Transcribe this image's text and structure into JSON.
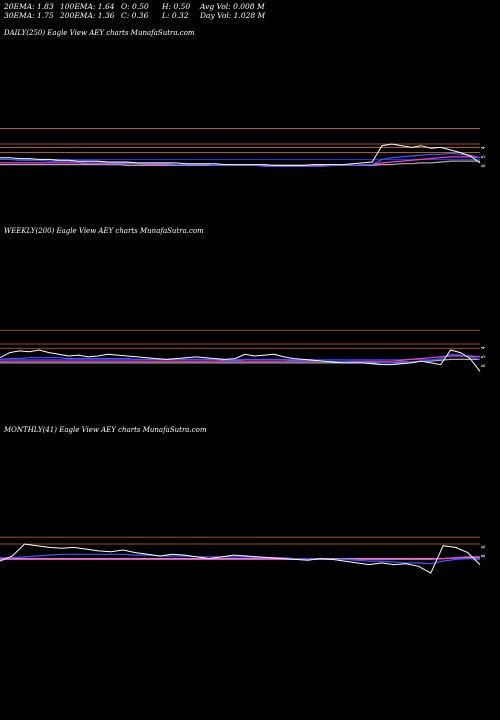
{
  "header": {
    "ema20": "20EMA: 1.83",
    "ema30": "30EMA: 1.75",
    "ema100": "100EMA: 1.64",
    "ema200": "200EMA: 1.36",
    "open": "O: 0.50",
    "close": "C: 0.36",
    "high": "H: 0.50",
    "low": "L: 0.32",
    "avg_vol": "Avg Vol: 0.008  M",
    "day_vol": "Day Vol: 1.028  M"
  },
  "colors": {
    "background": "#000000",
    "price": "#ffffff",
    "ema_short": "#3b5bff",
    "ema_mid": "#ff3bd6",
    "ema_long": "#aaaaaa",
    "levels": "#cc6a1a",
    "blue_line": "#1f3fff"
  },
  "chart_data": [
    {
      "type": "line",
      "title": "DAILY(250) Eagle  View  AEY charts MunafaSutra.com",
      "tick_labels": [
        "4",
        "5",
        "6"
      ],
      "series": [
        {
          "values": [
            0.46,
            0.46,
            0.45,
            0.45,
            0.44,
            0.44,
            0.43,
            0.43,
            0.42,
            0.42,
            0.42,
            0.41,
            0.41,
            0.41,
            0.4,
            0.4,
            0.4,
            0.4,
            0.4,
            0.39,
            0.39,
            0.39,
            0.39,
            0.38,
            0.38,
            0.38,
            0.38,
            0.38,
            0.37,
            0.37,
            0.37,
            0.37,
            0.38,
            0.38,
            0.38,
            0.38,
            0.39,
            0.4,
            0.41,
            0.6,
            0.62,
            0.6,
            0.58,
            0.6,
            0.57,
            0.58,
            0.55,
            0.52,
            0.48,
            0.4
          ]
        },
        {
          "values": [
            0.44,
            0.44,
            0.43,
            0.43,
            0.43,
            0.42,
            0.42,
            0.42,
            0.41,
            0.41,
            0.41,
            0.4,
            0.4,
            0.4,
            0.39,
            0.39,
            0.39,
            0.39,
            0.38,
            0.38,
            0.38,
            0.38,
            0.37,
            0.37,
            0.37,
            0.37,
            0.37,
            0.36,
            0.36,
            0.36,
            0.36,
            0.36,
            0.36,
            0.36,
            0.37,
            0.37,
            0.37,
            0.38,
            0.38,
            0.44,
            0.46,
            0.47,
            0.48,
            0.49,
            0.5,
            0.5,
            0.51,
            0.5,
            0.49,
            0.46
          ]
        },
        {
          "values": [
            0.4,
            0.4,
            0.4,
            0.4,
            0.4,
            0.4,
            0.4,
            0.4,
            0.4,
            0.39,
            0.39,
            0.39,
            0.39,
            0.39,
            0.39,
            0.38,
            0.38,
            0.38,
            0.38,
            0.38,
            0.38,
            0.38,
            0.37,
            0.37,
            0.37,
            0.37,
            0.37,
            0.37,
            0.37,
            0.37,
            0.37,
            0.37,
            0.37,
            0.37,
            0.37,
            0.37,
            0.37,
            0.37,
            0.38,
            0.4,
            0.41,
            0.42,
            0.43,
            0.44,
            0.45,
            0.46,
            0.47,
            0.47,
            0.47,
            0.46
          ]
        },
        {
          "values": [
            0.38,
            0.38,
            0.38,
            0.38,
            0.38,
            0.38,
            0.38,
            0.38,
            0.38,
            0.38,
            0.38,
            0.38,
            0.38,
            0.37,
            0.37,
            0.37,
            0.37,
            0.37,
            0.37,
            0.37,
            0.37,
            0.37,
            0.37,
            0.37,
            0.37,
            0.37,
            0.37,
            0.37,
            0.37,
            0.37,
            0.37,
            0.37,
            0.37,
            0.37,
            0.37,
            0.37,
            0.37,
            0.37,
            0.37,
            0.38,
            0.38,
            0.39,
            0.39,
            0.4,
            0.4,
            0.41,
            0.42,
            0.42,
            0.42,
            0.42
          ]
        }
      ],
      "levels": [
        0.8,
        0.62,
        0.58,
        0.52
      ],
      "blue_level": 0.44
    },
    {
      "type": "line",
      "title": "WEEKLY(200) Eagle  View  AEY charts MunafaSutra.com",
      "tick_labels": [
        "4",
        "5",
        "6"
      ],
      "series": [
        {
          "values": [
            0.46,
            0.52,
            0.54,
            0.53,
            0.55,
            0.52,
            0.5,
            0.48,
            0.49,
            0.47,
            0.48,
            0.5,
            0.49,
            0.48,
            0.47,
            0.46,
            0.45,
            0.44,
            0.45,
            0.46,
            0.47,
            0.46,
            0.45,
            0.44,
            0.45,
            0.5,
            0.48,
            0.49,
            0.5,
            0.47,
            0.45,
            0.44,
            0.43,
            0.42,
            0.41,
            0.4,
            0.4,
            0.4,
            0.39,
            0.38,
            0.38,
            0.39,
            0.4,
            0.42,
            0.4,
            0.38,
            0.55,
            0.52,
            0.45,
            0.3
          ]
        },
        {
          "values": [
            0.44,
            0.45,
            0.45,
            0.46,
            0.46,
            0.46,
            0.46,
            0.45,
            0.45,
            0.45,
            0.45,
            0.45,
            0.45,
            0.45,
            0.44,
            0.44,
            0.44,
            0.44,
            0.44,
            0.44,
            0.44,
            0.44,
            0.44,
            0.43,
            0.43,
            0.44,
            0.44,
            0.44,
            0.44,
            0.44,
            0.43,
            0.43,
            0.43,
            0.42,
            0.42,
            0.42,
            0.41,
            0.41,
            0.41,
            0.4,
            0.4,
            0.4,
            0.41,
            0.42,
            0.43,
            0.45,
            0.5,
            0.49,
            0.47,
            0.44
          ]
        },
        {
          "values": [
            0.42,
            0.42,
            0.42,
            0.42,
            0.42,
            0.42,
            0.42,
            0.42,
            0.42,
            0.42,
            0.42,
            0.42,
            0.42,
            0.42,
            0.42,
            0.42,
            0.42,
            0.42,
            0.42,
            0.42,
            0.42,
            0.42,
            0.42,
            0.42,
            0.42,
            0.42,
            0.42,
            0.42,
            0.42,
            0.42,
            0.42,
            0.42,
            0.42,
            0.42,
            0.42,
            0.42,
            0.42,
            0.42,
            0.42,
            0.42,
            0.42,
            0.43,
            0.44,
            0.45,
            0.46,
            0.47,
            0.48,
            0.48,
            0.48,
            0.47
          ]
        },
        {
          "values": [
            0.4,
            0.4,
            0.4,
            0.4,
            0.4,
            0.4,
            0.4,
            0.4,
            0.4,
            0.4,
            0.4,
            0.4,
            0.4,
            0.4,
            0.4,
            0.4,
            0.4,
            0.4,
            0.4,
            0.4,
            0.4,
            0.4,
            0.4,
            0.4,
            0.4,
            0.4,
            0.4,
            0.4,
            0.4,
            0.4,
            0.4,
            0.4,
            0.4,
            0.4,
            0.4,
            0.4,
            0.4,
            0.4,
            0.4,
            0.4,
            0.4,
            0.41,
            0.41,
            0.42,
            0.42,
            0.43,
            0.44,
            0.44,
            0.44,
            0.44
          ]
        }
      ],
      "levels": [
        0.78,
        0.62,
        0.57
      ],
      "blue_level": 0.44
    },
    {
      "type": "line",
      "title": "MONTHLY(41) Eagle  View  AEY charts MunafaSutra.com",
      "tick_labels": [
        "6",
        "8"
      ],
      "series": [
        {
          "values": [
            0.42,
            0.48,
            0.62,
            0.6,
            0.58,
            0.57,
            0.58,
            0.56,
            0.54,
            0.53,
            0.55,
            0.52,
            0.5,
            0.48,
            0.5,
            0.49,
            0.47,
            0.45,
            0.47,
            0.49,
            0.48,
            0.47,
            0.46,
            0.45,
            0.44,
            0.43,
            0.45,
            0.44,
            0.42,
            0.4,
            0.38,
            0.4,
            0.38,
            0.39,
            0.36,
            0.28,
            0.6,
            0.58,
            0.52,
            0.38
          ]
        },
        {
          "values": [
            0.46,
            0.46,
            0.47,
            0.48,
            0.49,
            0.5,
            0.5,
            0.5,
            0.5,
            0.5,
            0.5,
            0.49,
            0.49,
            0.48,
            0.48,
            0.48,
            0.47,
            0.47,
            0.47,
            0.47,
            0.47,
            0.46,
            0.46,
            0.46,
            0.45,
            0.45,
            0.45,
            0.44,
            0.44,
            0.43,
            0.42,
            0.42,
            0.41,
            0.4,
            0.4,
            0.39,
            0.42,
            0.44,
            0.45,
            0.44
          ]
        },
        {
          "values": [
            0.44,
            0.44,
            0.44,
            0.44,
            0.44,
            0.44,
            0.44,
            0.44,
            0.44,
            0.44,
            0.44,
            0.44,
            0.44,
            0.44,
            0.44,
            0.44,
            0.44,
            0.44,
            0.44,
            0.44,
            0.44,
            0.44,
            0.44,
            0.44,
            0.44,
            0.44,
            0.44,
            0.44,
            0.44,
            0.44,
            0.44,
            0.44,
            0.44,
            0.44,
            0.44,
            0.44,
            0.45,
            0.46,
            0.47,
            0.47
          ]
        },
        {
          "values": [
            0.45,
            0.45,
            0.45,
            0.45,
            0.45,
            0.45,
            0.45,
            0.45,
            0.45,
            0.45,
            0.45,
            0.45,
            0.45,
            0.45,
            0.45,
            0.45,
            0.45,
            0.45,
            0.45,
            0.45,
            0.45,
            0.45,
            0.45,
            0.45,
            0.45,
            0.45,
            0.45,
            0.45,
            0.45,
            0.45,
            0.45,
            0.45,
            0.45,
            0.45,
            0.45,
            0.45,
            0.45,
            0.46,
            0.46,
            0.46
          ]
        }
      ],
      "levels": [
        0.7,
        0.62
      ],
      "blue_level": 0.45
    }
  ]
}
